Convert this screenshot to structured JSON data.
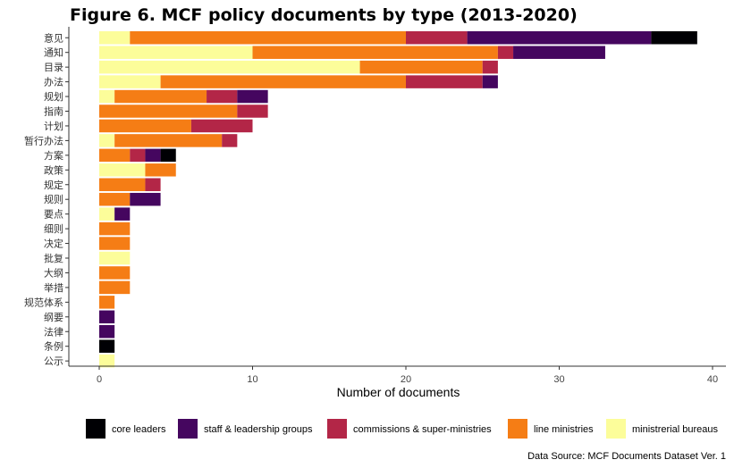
{
  "chart_data": {
    "type": "bar",
    "orientation": "horizontal",
    "stacked": true,
    "title": "Figure 6. MCF policy documents by type (2013-2020)",
    "xlabel": "Number of documents",
    "ylabel": "",
    "xlim": [
      0,
      40
    ],
    "xticks": [
      0,
      10,
      20,
      30,
      40
    ],
    "grid": false,
    "legend_position": "bottom",
    "caption": "Data Source: MCF Documents Dataset Ver. 1",
    "categories": [
      "意见",
      "通知",
      "目录",
      "办法",
      "规划",
      "指南",
      "计划",
      "暂行办法",
      "方案",
      "政策",
      "规定",
      "规则",
      "要点",
      "细则",
      "决定",
      "批复",
      "大纲",
      "举措",
      "规范体系",
      "纲要",
      "法律",
      "条例",
      "公示"
    ],
    "series": [
      {
        "name": "ministrerial bureaus",
        "color": "#FCFD9A",
        "values": [
          2,
          10,
          17,
          4,
          1,
          0,
          0,
          1,
          0,
          3,
          0,
          0,
          1,
          0,
          0,
          2,
          0,
          0,
          0,
          0,
          0,
          0,
          1
        ]
      },
      {
        "name": "line ministries",
        "color": "#F57D15",
        "values": [
          18,
          16,
          8,
          16,
          6,
          9,
          6,
          7,
          2,
          2,
          3,
          2,
          0,
          2,
          2,
          0,
          2,
          2,
          1,
          0,
          0,
          0,
          0
        ]
      },
      {
        "name": "commissions & super-ministries",
        "color": "#B32647",
        "values": [
          4,
          1,
          1,
          5,
          2,
          2,
          4,
          1,
          1,
          0,
          1,
          0,
          0,
          0,
          0,
          0,
          0,
          0,
          0,
          0,
          0,
          0,
          0
        ]
      },
      {
        "name": "staff & leadership groups",
        "color": "#45065F",
        "values": [
          12,
          6,
          0,
          1,
          2,
          0,
          0,
          0,
          1,
          0,
          0,
          2,
          1,
          0,
          0,
          0,
          0,
          0,
          0,
          1,
          1,
          0,
          0
        ]
      },
      {
        "name": "core leaders",
        "color": "#000004",
        "values": [
          3,
          0,
          0,
          0,
          0,
          0,
          0,
          0,
          1,
          0,
          0,
          0,
          0,
          0,
          0,
          0,
          0,
          0,
          0,
          0,
          0,
          1,
          0
        ]
      }
    ],
    "legend_order": [
      "core leaders",
      "staff & leadership groups",
      "commissions & super-ministries",
      "line ministries",
      "ministrerial bureaus"
    ]
  }
}
